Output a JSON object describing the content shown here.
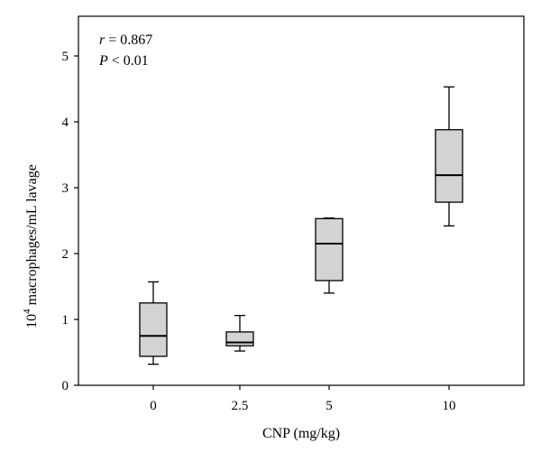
{
  "chart_data": {
    "type": "box",
    "title": "",
    "xlabel": "CNP (mg/kg)",
    "ylabel": "macrophages/mL lavage",
    "ylabel_prefix": "10",
    "ylabel_exponent": "4",
    "ylim": [
      0,
      5.5
    ],
    "yticks": [
      0,
      1,
      2,
      3,
      4,
      5
    ],
    "categories": [
      "0",
      "2.5",
      "5",
      "10"
    ],
    "boxes": [
      {
        "category": "0",
        "min": 0.32,
        "q1": 0.44,
        "median": 0.75,
        "q3": 1.25,
        "max": 1.57
      },
      {
        "category": "2.5",
        "min": 0.52,
        "q1": 0.6,
        "median": 0.65,
        "q3": 0.81,
        "max": 1.06
      },
      {
        "category": "5",
        "min": 1.4,
        "q1": 1.59,
        "median": 2.15,
        "q3": 2.53,
        "max": 2.54
      },
      {
        "category": "10",
        "min": 2.42,
        "q1": 2.78,
        "median": 3.19,
        "q3": 3.88,
        "max": 4.53
      }
    ],
    "annotations": {
      "r_symbol": "r",
      "r_text": " = 0.867",
      "p_symbol": "P",
      "p_text": " < 0.01"
    },
    "grid": false,
    "box_fill": "#d3d3d3",
    "line_color": "#000000"
  }
}
